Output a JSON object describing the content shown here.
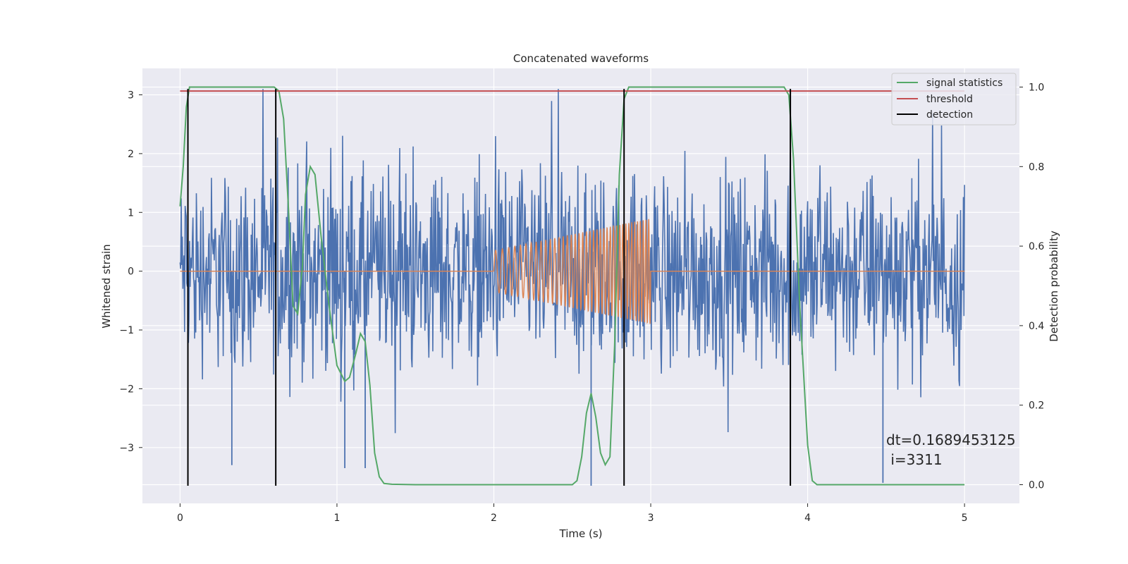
{
  "chart_data": {
    "type": "line",
    "title": "Concatenated waveforms",
    "xlabel": "Time (s)",
    "ylabel_left": "Whitened strain",
    "ylabel_right": "Detection probability",
    "xlim": [
      -0.24,
      5.35
    ],
    "ylim_left": [
      -3.95,
      3.45
    ],
    "ylim_right": [
      -0.047,
      1.047
    ],
    "xticks": [
      "0",
      "1",
      "2",
      "3",
      "4",
      "5"
    ],
    "xtick_values": [
      0,
      1,
      2,
      3,
      4,
      5
    ],
    "yticks_left": [
      "3",
      "2",
      "1",
      "0",
      "−1",
      "−2",
      "−3"
    ],
    "ytick_values_left": [
      3,
      2,
      1,
      0,
      -1,
      -2,
      -3
    ],
    "yticks_right": [
      "1.0",
      "0.8",
      "0.6",
      "0.4",
      "0.2",
      "0.0"
    ],
    "ytick_values_right": [
      1.0,
      0.8,
      0.6,
      0.4,
      0.2,
      0.0
    ],
    "grid": true,
    "legend_position": "upper-right",
    "noise": {
      "x_range": [
        0,
        5
      ],
      "amplitude_bound": 3.1,
      "min_spikes": [
        {
          "x": 0.33,
          "y": -3.3
        },
        {
          "x": 1.05,
          "y": -3.35
        },
        {
          "x": 1.18,
          "y": -3.35
        },
        {
          "x": 2.62,
          "y": -3.65
        },
        {
          "x": 4.48,
          "y": -3.6
        }
      ],
      "color": "#4c72b0"
    },
    "chirp": {
      "x_range": [
        2.0,
        3.0
      ],
      "amplitude_range": [
        0.35,
        0.9
      ],
      "color": "#dd8452"
    },
    "series": [
      {
        "name": "signal statistics",
        "axis": "right",
        "color": "#55a868",
        "x": [
          0.0,
          0.02,
          0.04,
          0.06,
          0.08,
          0.1,
          0.3,
          0.5,
          0.6,
          0.63,
          0.66,
          0.69,
          0.72,
          0.75,
          0.78,
          0.8,
          0.83,
          0.86,
          0.9,
          0.95,
          1.0,
          1.05,
          1.08,
          1.12,
          1.15,
          1.18,
          1.21,
          1.24,
          1.27,
          1.3,
          1.35,
          1.5,
          2.0,
          2.5,
          2.53,
          2.56,
          2.59,
          2.62,
          2.65,
          2.68,
          2.71,
          2.74,
          2.77,
          2.8,
          2.83,
          2.86,
          2.9,
          3.0,
          3.5,
          3.85,
          3.88,
          3.91,
          3.95,
          4.0,
          4.03,
          4.06,
          4.1,
          4.5,
          5.0
        ],
        "y": [
          0.7,
          0.8,
          0.95,
          1.0,
          1.0,
          1.0,
          1.0,
          1.0,
          1.0,
          0.99,
          0.92,
          0.7,
          0.45,
          0.43,
          0.55,
          0.73,
          0.8,
          0.78,
          0.62,
          0.45,
          0.3,
          0.26,
          0.27,
          0.33,
          0.38,
          0.36,
          0.25,
          0.08,
          0.02,
          0.003,
          0.001,
          0.0,
          0.0,
          0.0,
          0.01,
          0.07,
          0.18,
          0.23,
          0.17,
          0.08,
          0.05,
          0.07,
          0.35,
          0.78,
          0.97,
          1.0,
          1.0,
          1.0,
          1.0,
          1.0,
          0.98,
          0.82,
          0.45,
          0.1,
          0.01,
          0.0,
          0.0,
          0.0,
          0.0
        ]
      },
      {
        "name": "threshold",
        "axis": "right",
        "color": "#c44e52",
        "x": [
          0.0,
          5.0
        ],
        "y": [
          0.99,
          0.99
        ]
      },
      {
        "name": "detection",
        "axis": "left",
        "color": "#000000",
        "type": "vlines",
        "x": [
          0.05,
          0.61,
          2.83,
          3.89
        ],
        "y_range": [
          -3.65,
          3.1
        ]
      }
    ],
    "annotation": {
      "line1": "dt=0.1689453125",
      "line2": " i=3311",
      "x": 4.5,
      "y": -3.05
    }
  }
}
